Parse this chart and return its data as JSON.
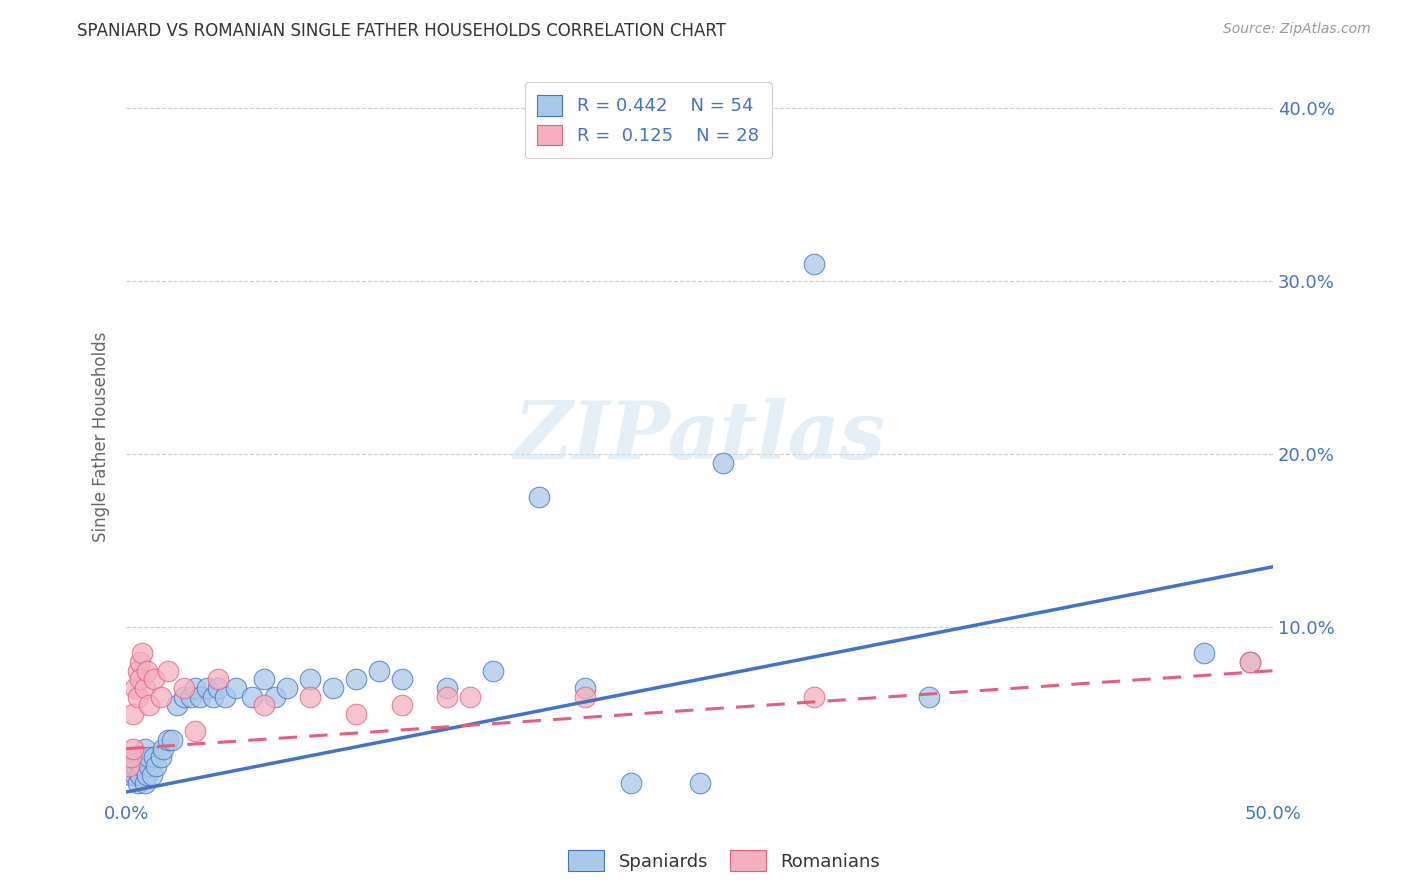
{
  "title": "SPANIARD VS ROMANIAN SINGLE FATHER HOUSEHOLDS CORRELATION CHART",
  "source": "Source: ZipAtlas.com",
  "ylabel": "Single Father Households",
  "xlim": [
    0.0,
    0.5
  ],
  "ylim": [
    0.0,
    0.42
  ],
  "xticks": [
    0.0,
    0.1,
    0.2,
    0.3,
    0.4,
    0.5
  ],
  "yticks": [
    0.0,
    0.1,
    0.2,
    0.3,
    0.4
  ],
  "ytick_labels": [
    "",
    "10.0%",
    "20.0%",
    "30.0%",
    "40.0%"
  ],
  "xtick_labels": [
    "0.0%",
    "",
    "",
    "",
    "",
    "50.0%"
  ],
  "background_color": "#ffffff",
  "grid_color": "#cccccc",
  "spaniards_color": "#aac8e8",
  "romanians_color": "#f4b0c0",
  "spaniards_line_color": "#4472c4",
  "romanians_line_color": "#e06080",
  "watermark_text": "ZIPatlas",
  "spaniards_line_x": [
    0.0,
    0.5
  ],
  "spaniards_line_y": [
    0.005,
    0.135
  ],
  "romanians_line_x": [
    0.0,
    0.5
  ],
  "romanians_line_y": [
    0.03,
    0.075
  ],
  "spaniards_x": [
    0.001,
    0.002,
    0.003,
    0.003,
    0.004,
    0.004,
    0.005,
    0.005,
    0.006,
    0.006,
    0.007,
    0.007,
    0.008,
    0.008,
    0.009,
    0.01,
    0.01,
    0.011,
    0.012,
    0.013,
    0.015,
    0.016,
    0.018,
    0.02,
    0.022,
    0.025,
    0.028,
    0.03,
    0.032,
    0.035,
    0.038,
    0.04,
    0.043,
    0.048,
    0.055,
    0.06,
    0.065,
    0.07,
    0.08,
    0.09,
    0.1,
    0.11,
    0.12,
    0.14,
    0.16,
    0.18,
    0.2,
    0.22,
    0.25,
    0.26,
    0.3,
    0.35,
    0.47,
    0.49
  ],
  "spaniards_y": [
    0.02,
    0.015,
    0.02,
    0.025,
    0.015,
    0.02,
    0.01,
    0.025,
    0.02,
    0.015,
    0.02,
    0.025,
    0.01,
    0.03,
    0.015,
    0.02,
    0.025,
    0.015,
    0.025,
    0.02,
    0.025,
    0.03,
    0.035,
    0.035,
    0.055,
    0.06,
    0.06,
    0.065,
    0.06,
    0.065,
    0.06,
    0.065,
    0.06,
    0.065,
    0.06,
    0.07,
    0.06,
    0.065,
    0.07,
    0.065,
    0.07,
    0.075,
    0.07,
    0.065,
    0.075,
    0.175,
    0.065,
    0.01,
    0.01,
    0.195,
    0.31,
    0.06,
    0.085,
    0.08
  ],
  "romanians_x": [
    0.001,
    0.002,
    0.003,
    0.003,
    0.004,
    0.005,
    0.005,
    0.006,
    0.006,
    0.007,
    0.008,
    0.009,
    0.01,
    0.012,
    0.015,
    0.018,
    0.025,
    0.03,
    0.04,
    0.06,
    0.08,
    0.1,
    0.12,
    0.14,
    0.15,
    0.2,
    0.3,
    0.49
  ],
  "romanians_y": [
    0.02,
    0.025,
    0.03,
    0.05,
    0.065,
    0.06,
    0.075,
    0.08,
    0.07,
    0.085,
    0.065,
    0.075,
    0.055,
    0.07,
    0.06,
    0.075,
    0.065,
    0.04,
    0.07,
    0.055,
    0.06,
    0.05,
    0.055,
    0.06,
    0.06,
    0.06,
    0.06,
    0.08
  ]
}
